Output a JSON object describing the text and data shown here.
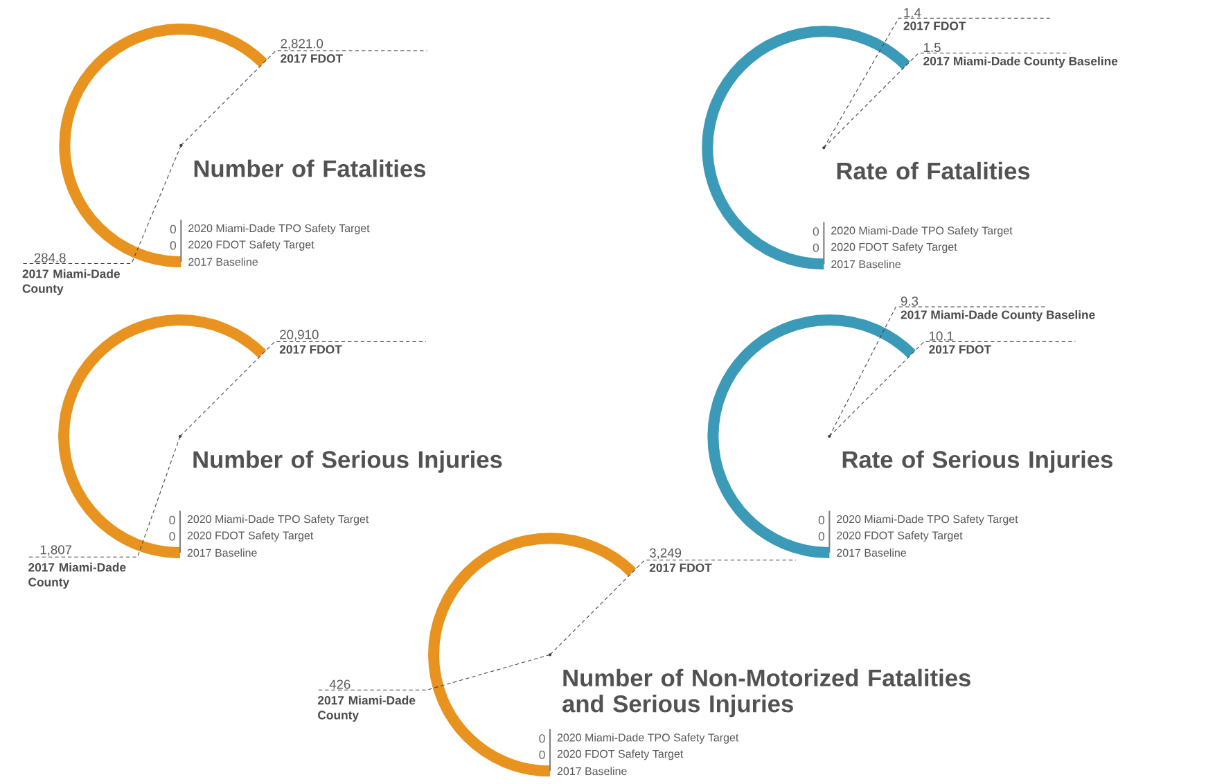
{
  "chart_data": [
    {
      "type": "other",
      "title": "Number of Fatalities",
      "color": "#e8931f",
      "categories": [
        "2017 FDOT",
        "2017 Miami-Dade County",
        "2020 Miami-Dade TPO Safety Target",
        "2020 FDOT Safety Target",
        "2017 Baseline"
      ],
      "values": [
        2821.0,
        284.8,
        0,
        0,
        null
      ],
      "value_labels": [
        "2,821.0",
        "284.8",
        "0",
        "0",
        null
      ]
    },
    {
      "type": "other",
      "title": "Rate of Fatalities",
      "color": "#3b9ab8",
      "categories": [
        "2017 FDOT",
        "2017 Miami-Dade County Baseline",
        "2020 Miami-Dade TPO Safety Target",
        "2020 FDOT Safety Target",
        "2017 Baseline"
      ],
      "values": [
        1.4,
        1.5,
        0,
        0,
        null
      ],
      "value_labels": [
        "1.4",
        "1.5",
        "0",
        "0",
        null
      ]
    },
    {
      "type": "other",
      "title": "Number of Serious Injuries",
      "color": "#e8931f",
      "categories": [
        "2017 FDOT",
        "2017 Miami-Dade County",
        "2020 Miami-Dade TPO Safety Target",
        "2020 FDOT Safety Target",
        "2017 Baseline"
      ],
      "values": [
        20910,
        1807,
        0,
        0,
        null
      ],
      "value_labels": [
        "20,910",
        "1,807",
        "0",
        "0",
        null
      ]
    },
    {
      "type": "other",
      "title": "Rate of Serious Injuries",
      "color": "#3b9ab8",
      "categories": [
        "2017 Miami-Dade County Baseline",
        "2017 FDOT",
        "2020 Miami-Dade TPO Safety Target",
        "2020 FDOT Safety Target",
        "2017 Baseline"
      ],
      "values": [
        9.3,
        10.1,
        0,
        0,
        null
      ],
      "value_labels": [
        "9.3",
        "10.1",
        "0",
        "0",
        null
      ]
    },
    {
      "type": "other",
      "title": "Number of Non-Motorized Fatalities and Serious Injuries",
      "color": "#e8931f",
      "categories": [
        "2017 FDOT",
        "2017 Miami-Dade County",
        "2020 Miami-Dade TPO Safety Target",
        "2020 FDOT Safety Target",
        "2017 Baseline"
      ],
      "values": [
        3249,
        426,
        0,
        0,
        null
      ],
      "value_labels": [
        "3,249",
        "426",
        "0",
        "0",
        null
      ]
    }
  ]
}
